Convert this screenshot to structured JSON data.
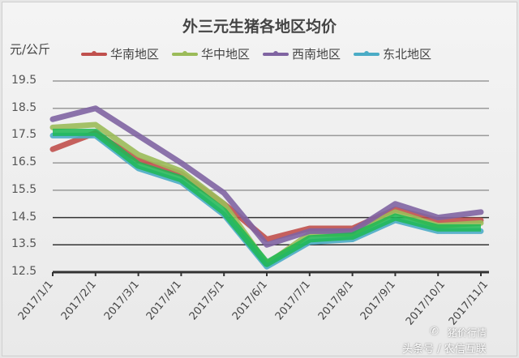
{
  "chart_data": {
    "type": "line",
    "title": "外三元生猪各地区均价",
    "ylabel": "元/公斤",
    "xlabel": "",
    "ylim": [
      12.5,
      19.5
    ],
    "yticks": [
      "19.5",
      "18.5",
      "17.5",
      "16.5",
      "15.5",
      "14.5",
      "13.5",
      "12.5"
    ],
    "grid": true,
    "legend_position": "top",
    "categories": [
      "2017/1/1",
      "2017/2/1",
      "2017/3/1",
      "2017/4/1",
      "2017/5/1",
      "2017/6/1",
      "2017/7/1",
      "2017/8/1",
      "2017/9/1",
      "2017/10/1",
      "2017/11/1"
    ],
    "series": [
      {
        "name": "华南地区",
        "color": "#c0504d",
        "values": [
          17.0,
          17.6,
          16.6,
          16.1,
          15.0,
          13.7,
          14.1,
          14.1,
          14.8,
          14.4,
          14.4
        ]
      },
      {
        "name": "华中地区",
        "color": "#9bbb59",
        "values": [
          17.8,
          17.9,
          16.8,
          16.2,
          15.0,
          12.8,
          13.9,
          13.9,
          14.7,
          14.2,
          14.3
        ]
      },
      {
        "name": "西南地区",
        "color": "#8064a2",
        "values": [
          18.1,
          18.5,
          17.5,
          16.5,
          15.4,
          13.5,
          14.0,
          14.0,
          15.0,
          14.5,
          14.7
        ]
      },
      {
        "name": "东北地区",
        "color": "#4bacc6",
        "values": [
          17.5,
          17.5,
          16.3,
          15.8,
          14.6,
          12.7,
          13.6,
          13.7,
          14.4,
          14.0,
          14.0
        ]
      }
    ]
  },
  "watermark": {
    "line1": "猪价行情",
    "line2": "头条号 / 农信互联"
  }
}
